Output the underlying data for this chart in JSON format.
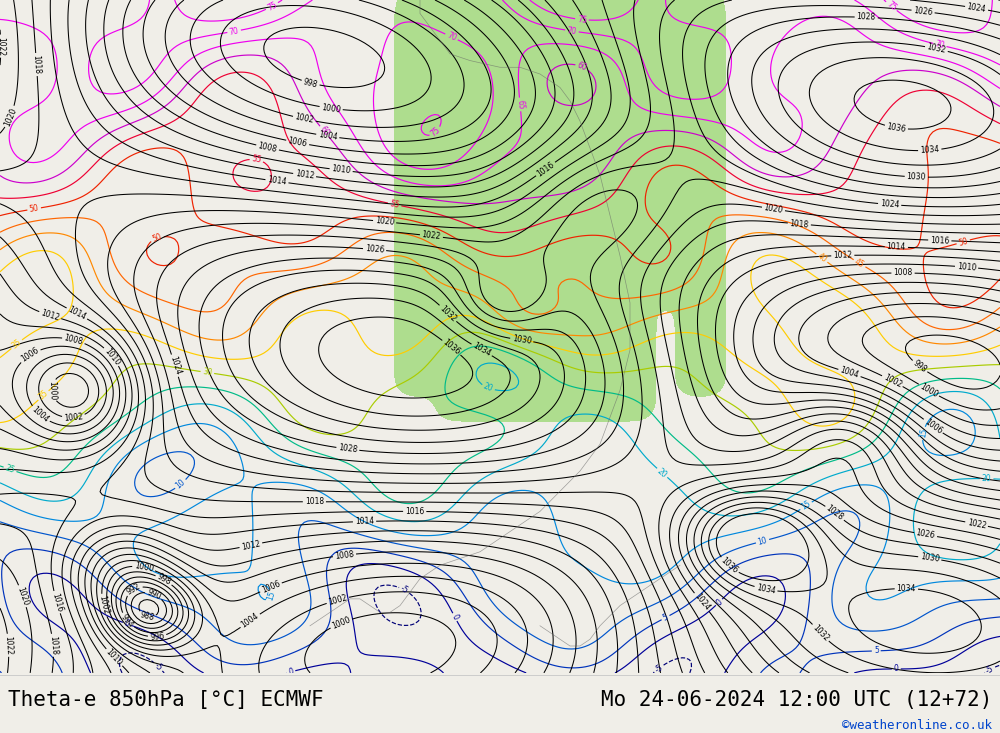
{
  "title_left": "Theta-e 850hPa [°C] ECMWF",
  "title_right": "Mo 24-06-2024 12:00 UTC (12+72)",
  "copyright": "©weatheronline.co.uk",
  "map_bg": "#f0eee8",
  "ocean_bg": "#e8e4de",
  "green_fill": "#98d870",
  "bottom_bar_color": "#ffffff",
  "title_fontsize": 15,
  "copyright_color": "#0044cc",
  "copyright_fontsize": 9
}
